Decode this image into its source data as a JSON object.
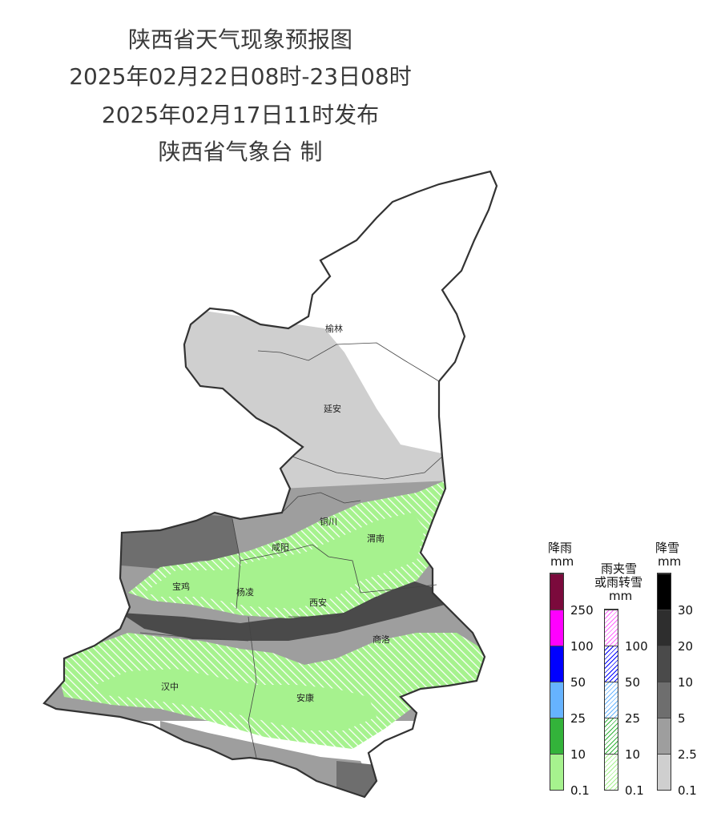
{
  "header": {
    "title": "陕西省天气现象预报图",
    "period": "2025年02月22日08时-23日08时",
    "issued": "2025年02月17日11时发布",
    "agency": "陕西省气象台 制"
  },
  "cities": {
    "yulin": "榆林",
    "yanan": "延安",
    "tongchuan": "铜川",
    "weinan": "渭南",
    "xianyang": "咸阳",
    "baoji": "宝鸡",
    "yangling": "杨凌",
    "xian": "西安",
    "shangluo": "商洛",
    "hanzhong": "汉中",
    "ankang": "安康"
  },
  "legend": {
    "rain": {
      "title": "降雨",
      "unit": "mm",
      "labels": [
        "250",
        "100",
        "50",
        "25",
        "10",
        "0.1"
      ],
      "colors": [
        "#7b0a3c",
        "#ff00ff",
        "#0000ff",
        "#66b3ff",
        "#33b33a",
        "#a6f28e"
      ]
    },
    "mixed": {
      "title1": "雨夹雪",
      "title2": "或雨转雪",
      "unit": "mm",
      "labels": [
        "100",
        "50",
        "25",
        "10",
        "0.1"
      ],
      "colors": [
        "#ff66ff",
        "#0000ff",
        "#66b3ff",
        "#33b33a",
        "#a6f28e"
      ]
    },
    "snow": {
      "title": "降雪",
      "unit": "mm",
      "labels": [
        "30",
        "20",
        "10",
        "5",
        "2.5",
        "0.1"
      ],
      "colors": [
        "#000000",
        "#2e2e2e",
        "#4a4a4a",
        "#6e6e6e",
        "#9e9e9e",
        "#cfcfcf"
      ]
    }
  }
}
